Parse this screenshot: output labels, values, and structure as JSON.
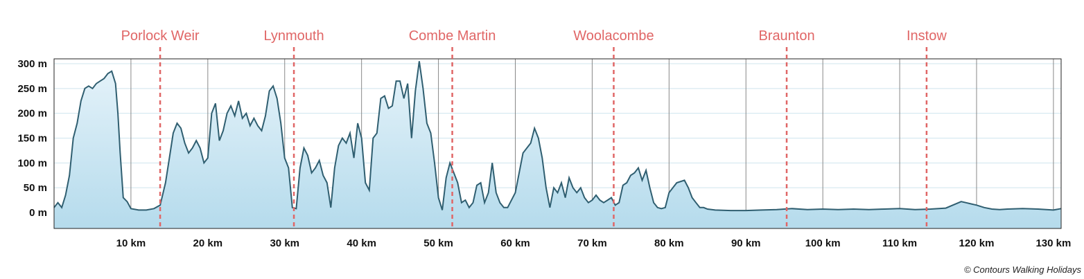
{
  "chart_data": {
    "type": "area",
    "title": "",
    "xlabel": "",
    "ylabel": "",
    "x_unit": "km",
    "y_unit": "m",
    "xlim": [
      0,
      131
    ],
    "ylim": [
      -30,
      300
    ],
    "x_ticks": [
      10,
      20,
      30,
      40,
      50,
      60,
      70,
      80,
      90,
      100,
      110,
      120,
      130
    ],
    "x_tick_labels": [
      "10 km",
      "20 km",
      "30 km",
      "40 km",
      "50 km",
      "60 km",
      "70 km",
      "80 km",
      "90 km",
      "100 km",
      "110 km",
      "120 km",
      "130 km"
    ],
    "y_ticks": [
      0,
      50,
      100,
      150,
      200,
      250,
      300
    ],
    "y_tick_labels": [
      "0 m",
      "50 m",
      "100 m",
      "150 m",
      "200 m",
      "250 m",
      "300 m"
    ],
    "grid": true,
    "colors": {
      "fill_top": "#e6f3fa",
      "fill_bottom": "#b5dbec",
      "line": "#2f5e70",
      "marker": "#e06666",
      "grid": "#cfe4ee",
      "vgrid": "#888888"
    },
    "markers": [
      {
        "label": "Porlock Weir",
        "x": 13.8
      },
      {
        "label": "Lynmouth",
        "x": 31.2
      },
      {
        "label": "Combe Martin",
        "x": 51.8
      },
      {
        "label": "Woolacombe",
        "x": 72.8
      },
      {
        "label": "Braunton",
        "x": 95.3
      },
      {
        "label": "Instow",
        "x": 113.5
      }
    ],
    "series": [
      {
        "x": [
          0,
          0.5,
          1,
          1.5,
          2,
          2.5,
          3,
          3.5,
          4,
          4.5,
          5,
          5.5,
          6,
          6.5,
          7,
          7.5,
          8,
          8.3,
          8.6,
          9,
          9.5,
          10,
          11,
          12,
          13,
          13.8,
          14.5,
          15,
          15.5,
          16,
          16.5,
          17,
          17.5,
          18,
          18.5,
          19,
          19.5,
          20,
          20.5,
          21,
          21.5,
          22,
          22.5,
          23,
          23.5,
          24,
          24.5,
          25,
          25.5,
          26,
          26.5,
          27,
          27.5,
          28,
          28.5,
          29,
          29.5,
          30,
          30.5,
          31,
          31.5,
          32,
          32.5,
          33,
          33.5,
          34,
          34.5,
          35,
          35.5,
          36,
          36.5,
          37,
          37.5,
          38,
          38.5,
          39,
          39.5,
          40,
          40.5,
          41,
          41.5,
          42,
          42.5,
          43,
          43.5,
          44,
          44.5,
          45,
          45.5,
          46,
          46.5,
          47,
          47.5,
          48,
          48.5,
          49,
          49.5,
          50,
          50.5,
          51,
          51.5,
          52,
          52.5,
          53,
          53.5,
          54,
          54.5,
          55,
          55.5,
          56,
          56.5,
          57,
          57.5,
          58,
          58.5,
          59,
          60,
          61,
          62,
          62.5,
          63,
          63.5,
          64,
          64.5,
          65,
          65.5,
          66,
          66.5,
          67,
          67.5,
          68,
          68.5,
          69,
          69.5,
          70,
          70.5,
          71,
          71.5,
          72,
          72.5,
          73,
          73.5,
          74,
          74.5,
          75,
          75.5,
          76,
          76.5,
          77,
          77.5,
          78,
          78.5,
          79,
          79.5,
          80,
          81,
          82,
          82.5,
          83,
          83.5,
          84,
          84.5,
          85,
          86,
          88,
          90,
          92,
          94,
          96,
          98,
          100,
          102,
          104,
          106,
          108,
          110,
          112,
          114,
          116,
          118,
          120,
          121,
          122,
          123,
          124,
          126,
          128,
          130,
          131
        ],
        "y": [
          10,
          20,
          10,
          35,
          75,
          150,
          180,
          225,
          250,
          255,
          250,
          260,
          265,
          270,
          280,
          285,
          260,
          200,
          120,
          30,
          22,
          8,
          5,
          5,
          8,
          15,
          60,
          110,
          160,
          180,
          170,
          140,
          120,
          130,
          145,
          130,
          100,
          110,
          200,
          220,
          145,
          165,
          200,
          215,
          195,
          225,
          190,
          200,
          175,
          190,
          175,
          165,
          195,
          245,
          255,
          230,
          180,
          110,
          90,
          10,
          8,
          90,
          130,
          115,
          80,
          90,
          105,
          75,
          60,
          10,
          90,
          135,
          150,
          140,
          160,
          110,
          180,
          150,
          60,
          45,
          150,
          160,
          230,
          235,
          210,
          215,
          265,
          265,
          230,
          260,
          150,
          245,
          305,
          250,
          180,
          160,
          100,
          30,
          5,
          70,
          100,
          80,
          60,
          20,
          25,
          10,
          20,
          55,
          60,
          20,
          40,
          100,
          40,
          20,
          10,
          10,
          40,
          120,
          140,
          170,
          150,
          110,
          50,
          10,
          50,
          40,
          60,
          30,
          70,
          50,
          40,
          50,
          30,
          20,
          25,
          35,
          25,
          20,
          25,
          30,
          15,
          20,
          55,
          60,
          75,
          80,
          90,
          65,
          85,
          50,
          20,
          10,
          8,
          10,
          40,
          60,
          65,
          50,
          30,
          20,
          10,
          10,
          7,
          5,
          4,
          4,
          5,
          6,
          8,
          6,
          7,
          6,
          7,
          6,
          7,
          8,
          6,
          7,
          9,
          22,
          15,
          10,
          7,
          6,
          7,
          8,
          7,
          5,
          8
        ]
      }
    ]
  },
  "footer": {
    "credit": "© Contours Walking Holidays"
  }
}
